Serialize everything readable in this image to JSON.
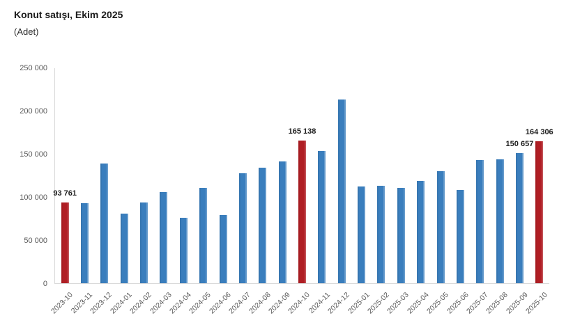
{
  "chart_data": {
    "type": "bar",
    "title": "Konut satışı, Ekim 2025",
    "subtitle": "(Adet)",
    "categories": [
      "2023-10",
      "2023-11",
      "2023-12",
      "2024-01",
      "2024-02",
      "2024-03",
      "2024-04",
      "2024-05",
      "2024-06",
      "2024-07",
      "2024-08",
      "2024-09",
      "2024-10",
      "2024-11",
      "2024-12",
      "2025-01",
      "2025-02",
      "2025-03",
      "2025-04",
      "2025-05",
      "2025-06",
      "2025-07",
      "2025-08",
      "2025-09",
      "2025-10"
    ],
    "values": [
      93761,
      93178,
      138577,
      80308,
      93902,
      105394,
      75569,
      110588,
      79313,
      127088,
      134155,
      140919,
      165138,
      153014,
      212637,
      112173,
      112818,
      110795,
      118359,
      130025,
      107723,
      142858,
      143319,
      150657,
      164306
    ],
    "highlight_indices": [
      0,
      12,
      24
    ],
    "data_labels": [
      {
        "index": 0,
        "text": "93 761"
      },
      {
        "index": 12,
        "text": "165 138"
      },
      {
        "index": 23,
        "text": "150 657"
      },
      {
        "index": 24,
        "text": "164 306"
      }
    ],
    "ylim": [
      0,
      250000
    ],
    "y_ticks": [
      {
        "value": 0,
        "label": "0"
      },
      {
        "value": 50000,
        "label": "50 000"
      },
      {
        "value": 100000,
        "label": "100 000"
      },
      {
        "value": 150000,
        "label": "150 000"
      },
      {
        "value": 200000,
        "label": "200 000"
      },
      {
        "value": 250000,
        "label": "250 000"
      }
    ],
    "xlabel": "",
    "ylabel": "",
    "grid": false,
    "legend": false,
    "colors": {
      "bar": "#3A7EBD",
      "highlight": "#B01E24",
      "axis_line": "#D9D9D9",
      "tick_text": "#595959",
      "value_label_text": "#1A1A1A",
      "background": "#FFFFFF"
    }
  }
}
